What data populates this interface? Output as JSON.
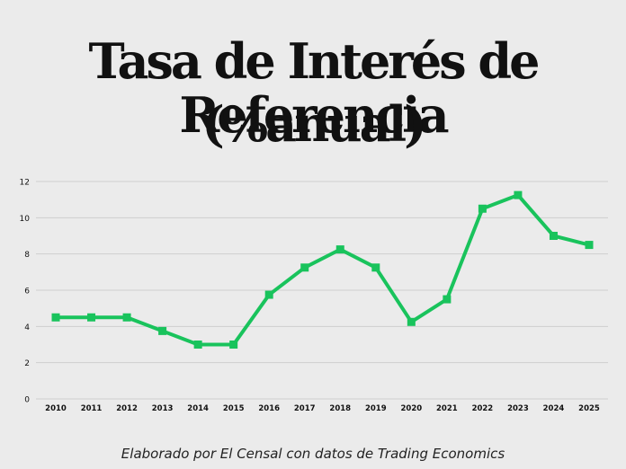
{
  "header": {
    "title_line1": "Tasa de Interés de Referencia",
    "title_line2": "(%anual)"
  },
  "footer": {
    "caption": "Elaborado por El Censal con datos de Trading Economics"
  },
  "colors": {
    "background": "#ebebeb",
    "line": "#19c35c",
    "grid": "#cfcfcf",
    "text": "#111111"
  },
  "chart_data": {
    "type": "line",
    "title": "Tasa de Interés de Referencia (%anual)",
    "xlabel": "",
    "ylabel": "",
    "categories": [
      "2010",
      "2011",
      "2012",
      "2013",
      "2014",
      "2015",
      "2016",
      "2017",
      "2018",
      "2019",
      "2020",
      "2021",
      "2022",
      "2023",
      "2024",
      "2025"
    ],
    "series": [
      {
        "values": [
          4.5,
          4.5,
          4.5,
          3.75,
          3.0,
          3.0,
          5.75,
          7.25,
          8.25,
          7.25,
          4.25,
          5.5,
          10.5,
          11.25,
          9.0,
          8.5
        ]
      }
    ],
    "ylim": [
      0,
      12
    ],
    "yticks": [
      "0",
      "2",
      "4",
      "6",
      "8",
      "10",
      "12"
    ],
    "grid": true,
    "legend": "none",
    "marker": "square"
  }
}
